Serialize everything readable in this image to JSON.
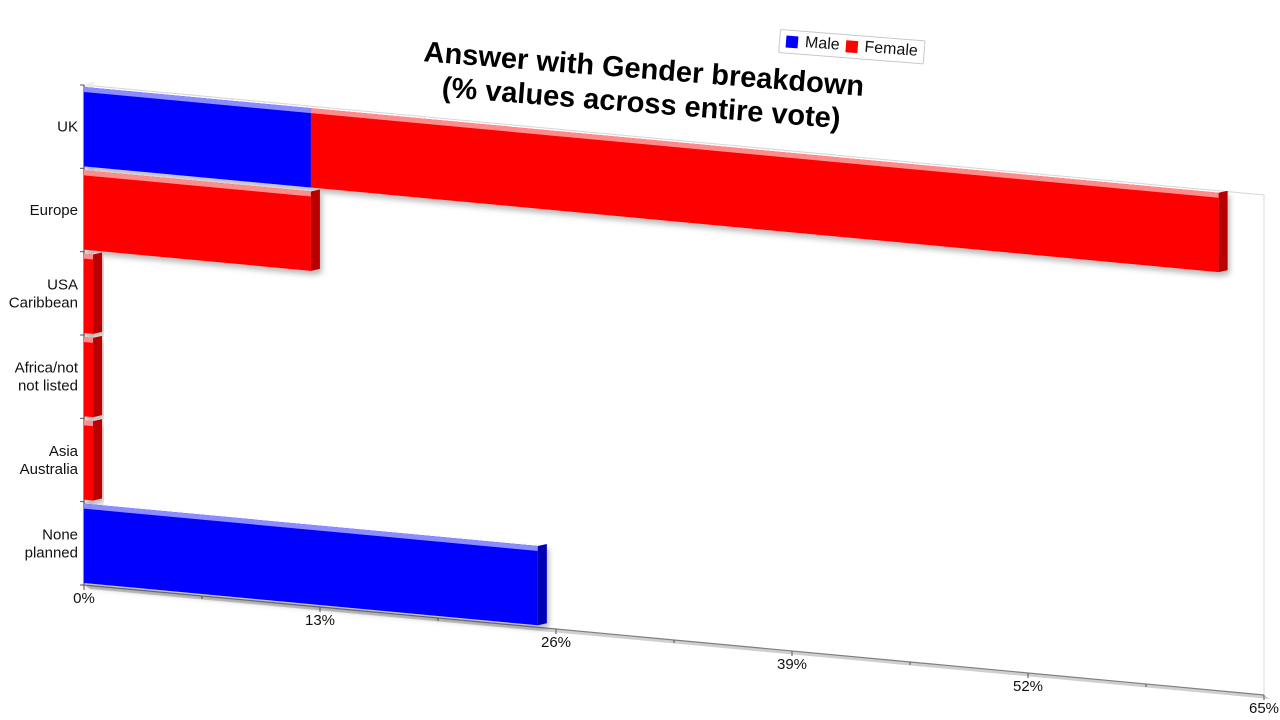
{
  "chart_data": {
    "type": "bar",
    "orientation": "horizontal",
    "stacked": true,
    "title": "Answer with Gender breakdown",
    "subtitle": "(% values across entire vote)",
    "categories": [
      "UK",
      "Europe",
      "USA\nCaribbean",
      "Africa/not\nnot listed",
      "Asia\nAustralia",
      "None\nplanned"
    ],
    "series": [
      {
        "name": "Male",
        "color": "#0000ff",
        "values": [
          12.5,
          0,
          0,
          0,
          0,
          25
        ]
      },
      {
        "name": "Female",
        "color": "#ff0000",
        "values": [
          50,
          12.5,
          0.5,
          0.5,
          0.5,
          0
        ]
      }
    ],
    "xlim": [
      0,
      65
    ],
    "xticks": [
      "0%",
      "13%",
      "26%",
      "39%",
      "52%",
      "65%"
    ],
    "legend_position": "top-right"
  }
}
